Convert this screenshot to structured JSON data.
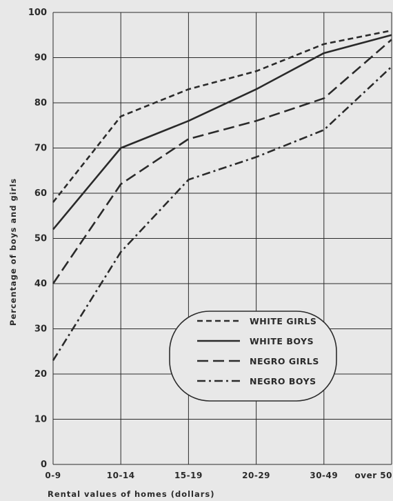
{
  "chart_data": {
    "type": "line",
    "title": "",
    "xlabel": "Rental values of homes (dollars)",
    "ylabel": "Percentage of boys and girls",
    "categories": [
      "0-9",
      "10-14",
      "15-19",
      "20-29",
      "30-49",
      "over 50"
    ],
    "ylim": [
      0,
      100
    ],
    "yticks": [
      0,
      10,
      20,
      30,
      40,
      50,
      60,
      70,
      80,
      90,
      100
    ],
    "grid": true,
    "legend_position": "center-right",
    "series": [
      {
        "name": "WHITE GIRLS",
        "style": "short-dash",
        "values": [
          58,
          77,
          83,
          87,
          93,
          96
        ]
      },
      {
        "name": "WHITE BOYS",
        "style": "solid",
        "values": [
          52,
          70,
          76,
          83,
          91,
          95
        ]
      },
      {
        "name": "NEGRO GIRLS",
        "style": "long-dash",
        "values": [
          40,
          62,
          72,
          76,
          81,
          94
        ]
      },
      {
        "name": "NEGRO BOYS",
        "style": "dash-dot",
        "values": [
          23,
          47,
          63,
          68,
          74,
          88
        ]
      }
    ],
    "colors": {
      "line": "#2a2a2a",
      "grid": "#2a2a2a",
      "background": "#e8e8e8"
    }
  }
}
